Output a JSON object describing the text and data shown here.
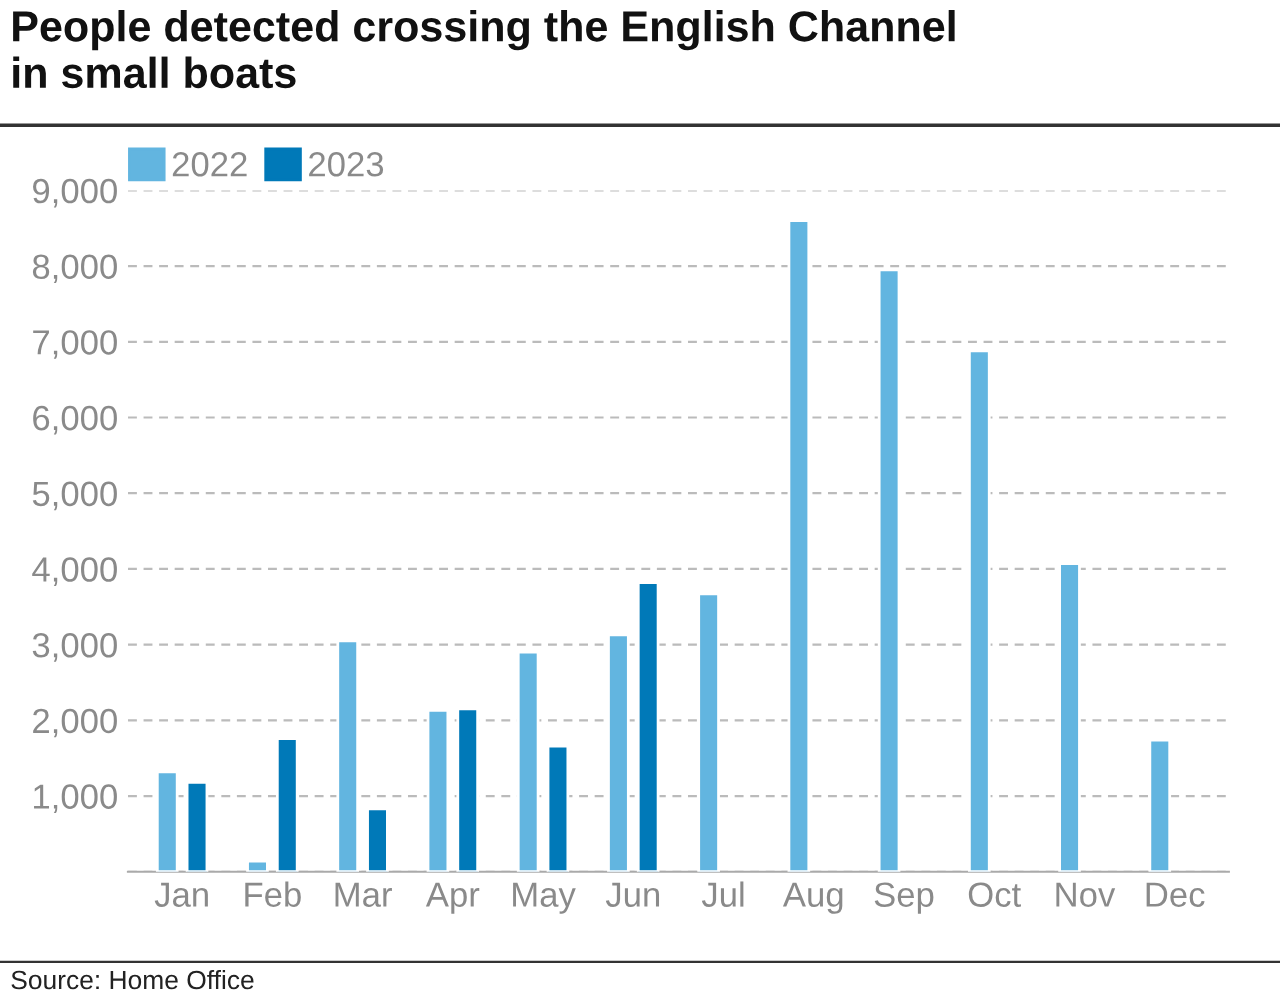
{
  "chart_data": {
    "type": "bar",
    "title": "People detected crossing the English Channel\nin small boats",
    "categories": [
      "Jan",
      "Feb",
      "Mar",
      "Apr",
      "May",
      "Jun",
      "Jul",
      "Aug",
      "Sep",
      "Oct",
      "Nov",
      "Dec"
    ],
    "series": [
      {
        "name": "2022",
        "color": "#62b5e0",
        "values": [
          1320,
          140,
          3050,
          2130,
          2900,
          3130,
          3670,
          8600,
          7950,
          6880,
          4070,
          1740
        ]
      },
      {
        "name": "2023",
        "color": "#0079b8",
        "values": [
          1180,
          1760,
          830,
          2150,
          1660,
          3820,
          null,
          null,
          null,
          null,
          null,
          null
        ]
      }
    ],
    "ylim": [
      0,
      9000
    ],
    "yticks": [
      {
        "value": 0,
        "label": null
      },
      {
        "value": 1000,
        "label": "1,000"
      },
      {
        "value": 2000,
        "label": "2,000"
      },
      {
        "value": 3000,
        "label": "3,000"
      },
      {
        "value": 4000,
        "label": "4,000"
      },
      {
        "value": 5000,
        "label": "5,000"
      },
      {
        "value": 6000,
        "label": "6,000"
      },
      {
        "value": 7000,
        "label": "7,000"
      },
      {
        "value": 8000,
        "label": "8,000"
      },
      {
        "value": 9000,
        "label": "9,000"
      }
    ],
    "grid": "y",
    "legend": "top left",
    "annotations": [
      "Source: Home Office"
    ]
  }
}
